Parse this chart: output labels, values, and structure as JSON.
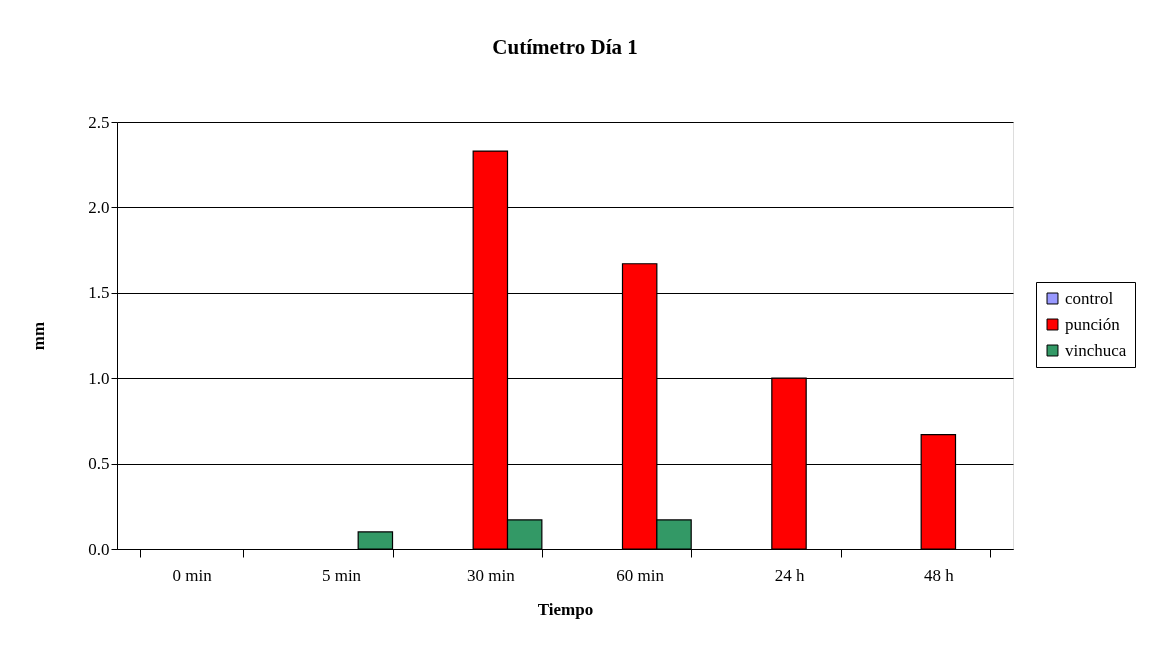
{
  "chart_data": {
    "type": "bar",
    "title": "Cutímetro Día 1",
    "xlabel": "Tiempo",
    "ylabel": "mm",
    "categories": [
      "0 min",
      "5 min",
      "30 min",
      "60 min",
      "24 h",
      "48 h"
    ],
    "series": [
      {
        "name": "control",
        "color": "#9999ff",
        "values": [
          0,
          0,
          0,
          0,
          0,
          0
        ]
      },
      {
        "name": "punción",
        "color": "#ff0000",
        "values": [
          0,
          0,
          2.33,
          1.67,
          1.0,
          0.67
        ]
      },
      {
        "name": "vinchuca",
        "color": "#339966",
        "values": [
          0,
          0.1,
          0.17,
          0.17,
          0,
          0
        ]
      }
    ],
    "ylim": [
      0,
      2.5
    ],
    "yticks": [
      {
        "value": 0,
        "label": "0.0"
      },
      0.5,
      {
        "value": 1,
        "label": "1.0"
      },
      1.5,
      {
        "value": 2,
        "label": "2.0"
      },
      2.5
    ],
    "grid": "y",
    "legend": "right"
  }
}
